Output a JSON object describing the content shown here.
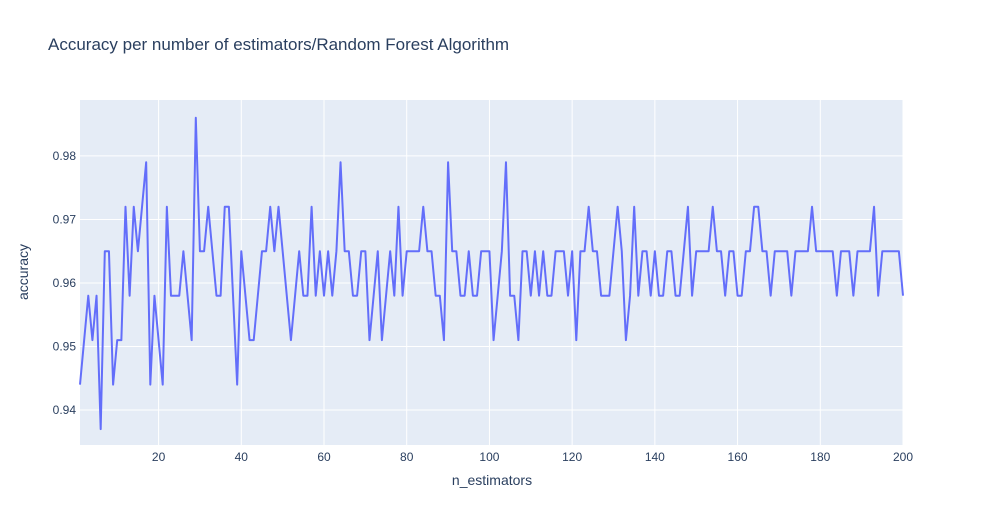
{
  "chart_data": {
    "type": "line",
    "title": "Accuracy per number of estimators/Random Forest Algorithm",
    "xlabel": "n_estimators",
    "ylabel": "accuracy",
    "xlim": [
      1,
      200
    ],
    "ylim": [
      0.9345,
      0.9888
    ],
    "x_ticks": [
      20,
      40,
      60,
      80,
      100,
      120,
      140,
      160,
      180,
      200
    ],
    "y_ticks": [
      0.94,
      0.95,
      0.96,
      0.97,
      0.98
    ],
    "x_tick_labels": [
      "20",
      "40",
      "60",
      "80",
      "100",
      "120",
      "140",
      "160",
      "180",
      "200"
    ],
    "y_tick_labels": [
      "0.94",
      "0.95",
      "0.96",
      "0.97",
      "0.98"
    ],
    "grid": true,
    "colors": {
      "line": "#636efa",
      "plot_bg": "#e5ecf6",
      "grid": "#ffffff",
      "text": "#2a3f5f"
    },
    "series": [
      {
        "x": [
          1,
          2,
          3,
          4,
          5,
          6,
          7,
          8,
          9,
          10,
          11,
          12,
          13,
          14,
          15,
          16,
          17,
          18,
          19,
          20,
          21,
          22,
          23,
          24,
          25,
          26,
          27,
          28,
          29,
          30,
          31,
          32,
          33,
          34,
          35,
          36,
          37,
          38,
          39,
          40,
          41,
          42,
          43,
          44,
          45,
          46,
          47,
          48,
          49,
          50,
          51,
          52,
          53,
          54,
          55,
          56,
          57,
          58,
          59,
          60,
          61,
          62,
          63,
          64,
          65,
          66,
          67,
          68,
          69,
          70,
          71,
          72,
          73,
          74,
          75,
          76,
          77,
          78,
          79,
          80,
          81,
          82,
          83,
          84,
          85,
          86,
          87,
          88,
          89,
          90,
          91,
          92,
          93,
          94,
          95,
          96,
          97,
          98,
          99,
          100,
          101,
          102,
          103,
          104,
          105,
          106,
          107,
          108,
          109,
          110,
          111,
          112,
          113,
          114,
          115,
          116,
          117,
          118,
          119,
          120,
          121,
          122,
          123,
          124,
          125,
          126,
          127,
          128,
          129,
          130,
          131,
          132,
          133,
          134,
          135,
          136,
          137,
          138,
          139,
          140,
          141,
          142,
          143,
          144,
          145,
          146,
          147,
          148,
          149,
          150,
          151,
          152,
          153,
          154,
          155,
          156,
          157,
          158,
          159,
          160,
          161,
          162,
          163,
          164,
          165,
          166,
          167,
          168,
          169,
          170,
          171,
          172,
          173,
          174,
          175,
          176,
          177,
          178,
          179,
          180,
          181,
          182,
          183,
          184,
          185,
          186,
          187,
          188,
          189,
          190,
          191,
          192,
          193,
          194,
          195,
          196,
          197,
          198,
          199,
          200
        ],
        "y": [
          0.944,
          0.951,
          0.958,
          0.951,
          0.958,
          0.937,
          0.965,
          0.965,
          0.944,
          0.951,
          0.951,
          0.972,
          0.958,
          0.972,
          0.965,
          0.972,
          0.979,
          0.944,
          0.958,
          0.951,
          0.944,
          0.972,
          0.958,
          0.958,
          0.958,
          0.965,
          0.958,
          0.951,
          0.986,
          0.965,
          0.965,
          0.972,
          0.965,
          0.958,
          0.958,
          0.972,
          0.972,
          0.958,
          0.944,
          0.965,
          0.958,
          0.951,
          0.951,
          0.958,
          0.965,
          0.965,
          0.972,
          0.965,
          0.972,
          0.965,
          0.958,
          0.951,
          0.958,
          0.965,
          0.958,
          0.958,
          0.972,
          0.958,
          0.965,
          0.958,
          0.965,
          0.958,
          0.965,
          0.979,
          0.965,
          0.965,
          0.958,
          0.958,
          0.965,
          0.965,
          0.951,
          0.958,
          0.965,
          0.951,
          0.958,
          0.965,
          0.958,
          0.972,
          0.958,
          0.965,
          0.965,
          0.965,
          0.965,
          0.972,
          0.965,
          0.965,
          0.958,
          0.958,
          0.951,
          0.979,
          0.965,
          0.965,
          0.958,
          0.958,
          0.965,
          0.958,
          0.958,
          0.965,
          0.965,
          0.965,
          0.951,
          0.958,
          0.965,
          0.979,
          0.958,
          0.958,
          0.951,
          0.965,
          0.965,
          0.958,
          0.965,
          0.958,
          0.965,
          0.958,
          0.958,
          0.965,
          0.965,
          0.965,
          0.958,
          0.965,
          0.951,
          0.965,
          0.965,
          0.972,
          0.965,
          0.965,
          0.958,
          0.958,
          0.958,
          0.965,
          0.972,
          0.965,
          0.951,
          0.958,
          0.972,
          0.958,
          0.965,
          0.965,
          0.958,
          0.965,
          0.958,
          0.958,
          0.965,
          0.965,
          0.958,
          0.958,
          0.965,
          0.972,
          0.958,
          0.965,
          0.965,
          0.965,
          0.965,
          0.972,
          0.965,
          0.965,
          0.958,
          0.965,
          0.965,
          0.958,
          0.958,
          0.965,
          0.965,
          0.972,
          0.972,
          0.965,
          0.965,
          0.958,
          0.965,
          0.965,
          0.965,
          0.965,
          0.958,
          0.965,
          0.965,
          0.965,
          0.965,
          0.972,
          0.965,
          0.965,
          0.965,
          0.965,
          0.965,
          0.958,
          0.965,
          0.965,
          0.965,
          0.958,
          0.965,
          0.965,
          0.965,
          0.965,
          0.972,
          0.958,
          0.965,
          0.965,
          0.965,
          0.965,
          0.965,
          0.958
        ]
      }
    ]
  }
}
